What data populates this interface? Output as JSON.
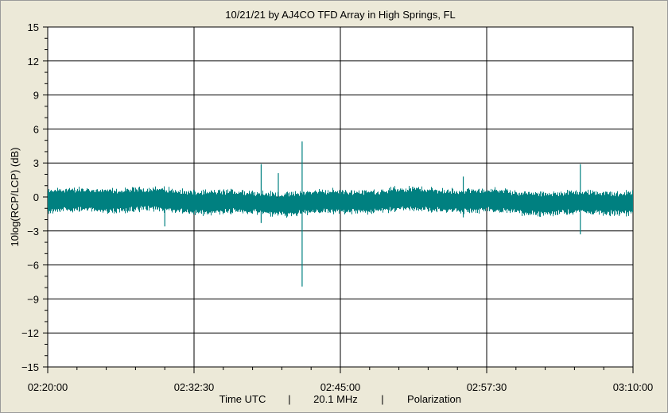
{
  "chart_data": {
    "type": "line",
    "title": "10/21/21  by  AJ4CO TFD Array  in  High Springs, FL",
    "ylabel": "10log(RCP/LCP)  (dB)",
    "xlabel_parts": [
      "Time UTC",
      "|",
      "20.1 MHz",
      "|",
      "Polarization"
    ],
    "ylim": [
      -15,
      15
    ],
    "yticks": [
      15,
      12,
      9,
      6,
      3,
      0,
      -3,
      -6,
      -9,
      -12,
      -15
    ],
    "xticks": [
      "02:20:00",
      "02:32:30",
      "02:45:00",
      "02:57:30",
      "03:10:00"
    ],
    "xlim_seconds_from_start": [
      0,
      3000
    ],
    "grid": true,
    "series": [
      {
        "color": "#008080",
        "baseline_db": -0.4,
        "noise_amplitude_db": 1.1,
        "spikes": [
          {
            "time": "02:30:00",
            "min": -2.6,
            "max": 0.6
          },
          {
            "time": "02:38:14",
            "min": -2.3,
            "max": 2.9
          },
          {
            "time": "02:39:42",
            "min": -0.8,
            "max": 2.1
          },
          {
            "time": "02:41:44",
            "min": -7.9,
            "max": 4.9
          },
          {
            "time": "02:55:30",
            "min": -1.8,
            "max": 1.8
          },
          {
            "time": "03:05:30",
            "min": -3.3,
            "max": 2.9
          }
        ]
      }
    ]
  }
}
